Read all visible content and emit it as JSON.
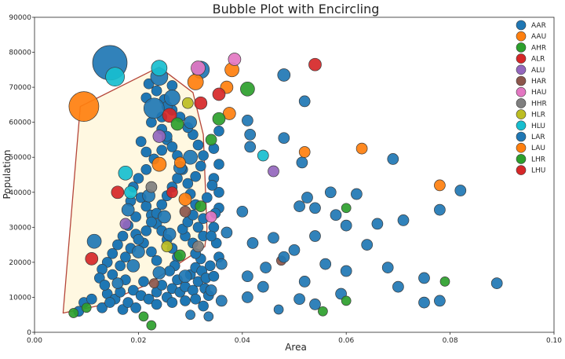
{
  "chart_data": {
    "type": "scatter",
    "title": "Bubble Plot with Encircling",
    "xlabel": "Area",
    "ylabel": "Population",
    "xlim": [
      0.0,
      0.1
    ],
    "ylim": [
      0,
      90000
    ],
    "grid": false,
    "legend_position": "top-right",
    "x_ticks": [
      0.0,
      0.02,
      0.04,
      0.06,
      0.08,
      0.1
    ],
    "x_tick_labels": [
      "0.00",
      "0.02",
      "0.04",
      "0.06",
      "0.08",
      "0.10"
    ],
    "y_ticks": [
      0,
      10000,
      20000,
      30000,
      40000,
      50000,
      60000,
      70000,
      80000,
      90000
    ],
    "y_tick_labels": [
      "0",
      "10000",
      "20000",
      "30000",
      "40000",
      "50000",
      "60000",
      "70000",
      "80000",
      "90000"
    ],
    "encircle": {
      "fill": "#fff8e1",
      "edge": "#b5463a",
      "hull": [
        [
          0.0055,
          5500
        ],
        [
          0.0088,
          64500
        ],
        [
          0.024,
          75800
        ],
        [
          0.0305,
          68500
        ],
        [
          0.0325,
          56500
        ],
        [
          0.0332,
          29500
        ],
        [
          0.0328,
          24500
        ],
        [
          0.0215,
          13500
        ],
        [
          0.012,
          7500
        ]
      ]
    },
    "series": [
      {
        "name": "AAR",
        "color": "#1f77b4",
        "points": [
          [
            0.0145,
            77000,
            22
          ],
          [
            0.023,
            64000,
            13
          ],
          [
            0.032,
            75000,
            11
          ],
          [
            0.024,
            73000,
            11
          ],
          [
            0.0265,
            67000,
            10
          ],
          [
            0.03,
            50000,
            9
          ],
          [
            0.0115,
            26000,
            9
          ],
          [
            0.019,
            19000,
            8
          ],
          [
            0.025,
            33000,
            8
          ],
          [
            0.03,
            60000,
            8
          ],
          [
            0.028,
            47000,
            8
          ],
          [
            0.018,
            35000,
            8
          ],
          [
            0.022,
            39000,
            8
          ],
          [
            0.026,
            28000,
            8
          ],
          [
            0.024,
            17000,
            8
          ],
          [
            0.02,
            23000,
            8
          ],
          [
            0.029,
            16000,
            8
          ],
          [
            0.016,
            14000,
            7
          ]
        ]
      },
      {
        "name": "AAU",
        "color": "#ff7f0e",
        "points": [
          [
            0.0095,
            64500,
            19
          ],
          [
            0.031,
            71500,
            10
          ],
          [
            0.038,
            75000,
            9
          ],
          [
            0.024,
            48000,
            9
          ],
          [
            0.029,
            38000,
            8
          ]
        ]
      },
      {
        "name": "AHR",
        "color": "#2ca02c",
        "points": [
          [
            0.032,
            36000,
            7
          ],
          [
            0.034,
            55000,
            7
          ],
          [
            0.041,
            69500,
            9
          ],
          [
            0.028,
            22000,
            7
          ]
        ]
      },
      {
        "name": "ALR",
        "color": "#d62728",
        "points": [
          [
            0.054,
            76500,
            8
          ],
          [
            0.026,
            62000,
            9
          ],
          [
            0.016,
            40000,
            8
          ],
          [
            0.011,
            21000,
            8
          ]
        ]
      },
      {
        "name": "ALU",
        "color": "#9467bd",
        "points": [
          [
            0.024,
            56000,
            8
          ],
          [
            0.046,
            46000,
            7
          ],
          [
            0.0175,
            31000,
            7
          ]
        ]
      },
      {
        "name": "HAR",
        "color": "#8c564b",
        "points": [
          [
            0.029,
            34500,
            7
          ],
          [
            0.0475,
            20500,
            6
          ],
          [
            0.023,
            14000,
            6
          ]
        ]
      },
      {
        "name": "HAU",
        "color": "#e377c2",
        "points": [
          [
            0.0315,
            75500,
            9
          ],
          [
            0.0385,
            78000,
            8
          ],
          [
            0.034,
            33000,
            7
          ]
        ]
      },
      {
        "name": "HHR",
        "color": "#7f7f7f",
        "points": [
          [
            0.0225,
            41500,
            7
          ],
          [
            0.0315,
            24500,
            7
          ]
        ]
      },
      {
        "name": "HLR",
        "color": "#bcbd22",
        "points": [
          [
            0.0295,
            65500,
            7
          ],
          [
            0.0255,
            24500,
            7
          ]
        ]
      },
      {
        "name": "HLU",
        "color": "#17becf",
        "points": [
          [
            0.024,
            75500,
            10
          ],
          [
            0.0155,
            73000,
            12
          ],
          [
            0.0175,
            45500,
            9
          ],
          [
            0.044,
            50500,
            7
          ],
          [
            0.0185,
            40000,
            8
          ]
        ]
      },
      {
        "name": "LAR",
        "color": "#1f77b4",
        "points": [
          [
            0.048,
            73500,
            8
          ],
          [
            0.052,
            66000,
            7
          ],
          [
            0.041,
            60500,
            7
          ],
          [
            0.0415,
            56500,
            7
          ],
          [
            0.0415,
            53000,
            7
          ],
          [
            0.048,
            55500,
            7
          ],
          [
            0.0515,
            48500,
            7
          ],
          [
            0.057,
            40000,
            7
          ],
          [
            0.062,
            39500,
            7
          ],
          [
            0.069,
            49500,
            7
          ],
          [
            0.082,
            40500,
            7
          ],
          [
            0.078,
            35000,
            7
          ],
          [
            0.071,
            32000,
            7
          ],
          [
            0.066,
            31000,
            7
          ],
          [
            0.06,
            30500,
            7
          ],
          [
            0.054,
            27500,
            7
          ],
          [
            0.046,
            27000,
            7
          ],
          [
            0.04,
            34500,
            7
          ],
          [
            0.037,
            28500,
            7
          ],
          [
            0.042,
            25500,
            7
          ],
          [
            0.05,
            23500,
            7
          ],
          [
            0.056,
            19500,
            7
          ],
          [
            0.064,
            25000,
            7
          ],
          [
            0.068,
            18500,
            7
          ],
          [
            0.06,
            17500,
            7
          ],
          [
            0.052,
            14500,
            7
          ],
          [
            0.044,
            13000,
            7
          ],
          [
            0.041,
            16000,
            7
          ],
          [
            0.036,
            19500,
            7
          ],
          [
            0.034,
            12000,
            7
          ],
          [
            0.036,
            9000,
            7
          ],
          [
            0.041,
            10000,
            7
          ],
          [
            0.051,
            9500,
            7
          ],
          [
            0.054,
            8000,
            7
          ],
          [
            0.059,
            11000,
            7
          ],
          [
            0.07,
            13000,
            7
          ],
          [
            0.075,
            15500,
            7
          ],
          [
            0.075,
            8500,
            7
          ],
          [
            0.078,
            9000,
            7
          ],
          [
            0.089,
            14000,
            7
          ],
          [
            0.047,
            6500,
            6
          ],
          [
            0.03,
            5000,
            6
          ],
          [
            0.0335,
            4500,
            6
          ],
          [
            0.051,
            36000,
            7
          ],
          [
            0.0525,
            38500,
            7
          ],
          [
            0.054,
            35500,
            7
          ],
          [
            0.058,
            33500,
            7
          ],
          [
            0.0445,
            18500,
            7
          ],
          [
            0.048,
            21500,
            7
          ]
        ]
      },
      {
        "name": "LAU",
        "color": "#ff7f0e",
        "points": [
          [
            0.063,
            52500,
            7
          ],
          [
            0.078,
            42000,
            7
          ],
          [
            0.052,
            51500,
            7
          ],
          [
            0.037,
            70000,
            8
          ],
          [
            0.0375,
            62500,
            8
          ],
          [
            0.028,
            48500,
            7
          ]
        ]
      },
      {
        "name": "LHR",
        "color": "#2ca02c",
        "points": [
          [
            0.0275,
            59500,
            8
          ],
          [
            0.0355,
            61000,
            8
          ],
          [
            0.06,
            35500,
            6
          ],
          [
            0.079,
            14500,
            6
          ],
          [
            0.06,
            9000,
            6
          ],
          [
            0.0555,
            6000,
            6
          ],
          [
            0.0225,
            2000,
            6
          ],
          [
            0.021,
            4500,
            6
          ],
          [
            0.0075,
            5500,
            6
          ],
          [
            0.01,
            7000,
            6
          ]
        ]
      },
      {
        "name": "LHU",
        "color": "#d62728",
        "points": [
          [
            0.0355,
            68000,
            8
          ],
          [
            0.032,
            65500,
            8
          ],
          [
            0.0265,
            40000,
            7
          ]
        ]
      }
    ],
    "background_points": [
      [
        0.0085,
        6000
      ],
      [
        0.0095,
        8500
      ],
      [
        0.011,
        9500
      ],
      [
        0.013,
        7000
      ],
      [
        0.014,
        11000
      ],
      [
        0.0155,
        9500
      ],
      [
        0.017,
        6500
      ],
      [
        0.018,
        8500
      ],
      [
        0.019,
        12000
      ],
      [
        0.0205,
        10500
      ],
      [
        0.021,
        14500
      ],
      [
        0.022,
        9500
      ],
      [
        0.0235,
        11500
      ],
      [
        0.0245,
        13500
      ],
      [
        0.0255,
        10000
      ],
      [
        0.0265,
        12500
      ],
      [
        0.0275,
        15000
      ],
      [
        0.028,
        11500
      ],
      [
        0.029,
        13000
      ],
      [
        0.03,
        16500
      ],
      [
        0.0305,
        12000
      ],
      [
        0.031,
        18500
      ],
      [
        0.0315,
        14500
      ],
      [
        0.032,
        21000
      ],
      [
        0.0322,
        17500
      ],
      [
        0.0328,
        12500
      ],
      [
        0.033,
        15500
      ],
      [
        0.031,
        22500
      ],
      [
        0.0305,
        25500
      ],
      [
        0.029,
        27500
      ],
      [
        0.0285,
        29500
      ],
      [
        0.0295,
        31500
      ],
      [
        0.0305,
        33500
      ],
      [
        0.0315,
        30000
      ],
      [
        0.0325,
        27500
      ],
      [
        0.0325,
        32500
      ],
      [
        0.031,
        36500
      ],
      [
        0.03,
        39500
      ],
      [
        0.0295,
        42500
      ],
      [
        0.031,
        44500
      ],
      [
        0.032,
        47500
      ],
      [
        0.0325,
        50500
      ],
      [
        0.0315,
        53500
      ],
      [
        0.0305,
        56500
      ],
      [
        0.0295,
        58500
      ],
      [
        0.028,
        61500
      ],
      [
        0.0265,
        63500
      ],
      [
        0.025,
        66500
      ],
      [
        0.0235,
        69000
      ],
      [
        0.022,
        71000
      ],
      [
        0.0215,
        67000
      ],
      [
        0.0225,
        60000
      ],
      [
        0.0245,
        58000
      ],
      [
        0.0255,
        55000
      ],
      [
        0.0245,
        52000
      ],
      [
        0.023,
        49500
      ],
      [
        0.0215,
        46500
      ],
      [
        0.02,
        44000
      ],
      [
        0.019,
        41500
      ],
      [
        0.0205,
        38500
      ],
      [
        0.0215,
        36000
      ],
      [
        0.0225,
        33500
      ],
      [
        0.0235,
        31000
      ],
      [
        0.0245,
        29000
      ],
      [
        0.0255,
        26500
      ],
      [
        0.0265,
        24000
      ],
      [
        0.0275,
        21500
      ],
      [
        0.027,
        19000
      ],
      [
        0.026,
        17500
      ],
      [
        0.0235,
        20500
      ],
      [
        0.0225,
        23000
      ],
      [
        0.021,
        25500
      ],
      [
        0.0195,
        28000
      ],
      [
        0.018,
        30500
      ],
      [
        0.017,
        27500
      ],
      [
        0.016,
        25000
      ],
      [
        0.015,
        22500
      ],
      [
        0.014,
        20000
      ],
      [
        0.013,
        18000
      ],
      [
        0.0125,
        15500
      ],
      [
        0.0135,
        13500
      ],
      [
        0.015,
        16500
      ],
      [
        0.0165,
        19000
      ],
      [
        0.0175,
        21500
      ],
      [
        0.0185,
        24000
      ],
      [
        0.02,
        26500
      ],
      [
        0.0215,
        29000
      ],
      [
        0.0225,
        31500
      ],
      [
        0.0235,
        34000
      ],
      [
        0.0245,
        36500
      ],
      [
        0.0255,
        39000
      ],
      [
        0.0265,
        41500
      ],
      [
        0.0275,
        44000
      ],
      [
        0.0285,
        46500
      ],
      [
        0.0275,
        50500
      ],
      [
        0.0265,
        53000
      ],
      [
        0.0255,
        56000
      ],
      [
        0.0245,
        61500
      ],
      [
        0.0255,
        64500
      ],
      [
        0.0265,
        70500
      ],
      [
        0.0215,
        51500
      ],
      [
        0.0205,
        54500
      ],
      [
        0.0195,
        33000
      ],
      [
        0.0185,
        37500
      ],
      [
        0.0175,
        15000
      ],
      [
        0.0165,
        11500
      ],
      [
        0.0145,
        8500
      ],
      [
        0.0195,
        7000
      ],
      [
        0.0235,
        8000
      ],
      [
        0.0265,
        8500
      ],
      [
        0.029,
        9000
      ],
      [
        0.031,
        9500
      ],
      [
        0.0325,
        7500
      ],
      [
        0.0345,
        16000
      ],
      [
        0.0355,
        21500
      ],
      [
        0.035,
        25500
      ],
      [
        0.0345,
        30000
      ],
      [
        0.0355,
        35500
      ],
      [
        0.0355,
        40000
      ],
      [
        0.0345,
        44000
      ],
      [
        0.0355,
        48000
      ],
      [
        0.0345,
        52500
      ],
      [
        0.0355,
        57500
      ],
      [
        0.034,
        27500
      ],
      [
        0.0338,
        19000
      ],
      [
        0.0335,
        10500
      ],
      [
        0.0332,
        38500
      ],
      [
        0.0342,
        42000
      ],
      [
        0.0348,
        34000
      ]
    ]
  }
}
